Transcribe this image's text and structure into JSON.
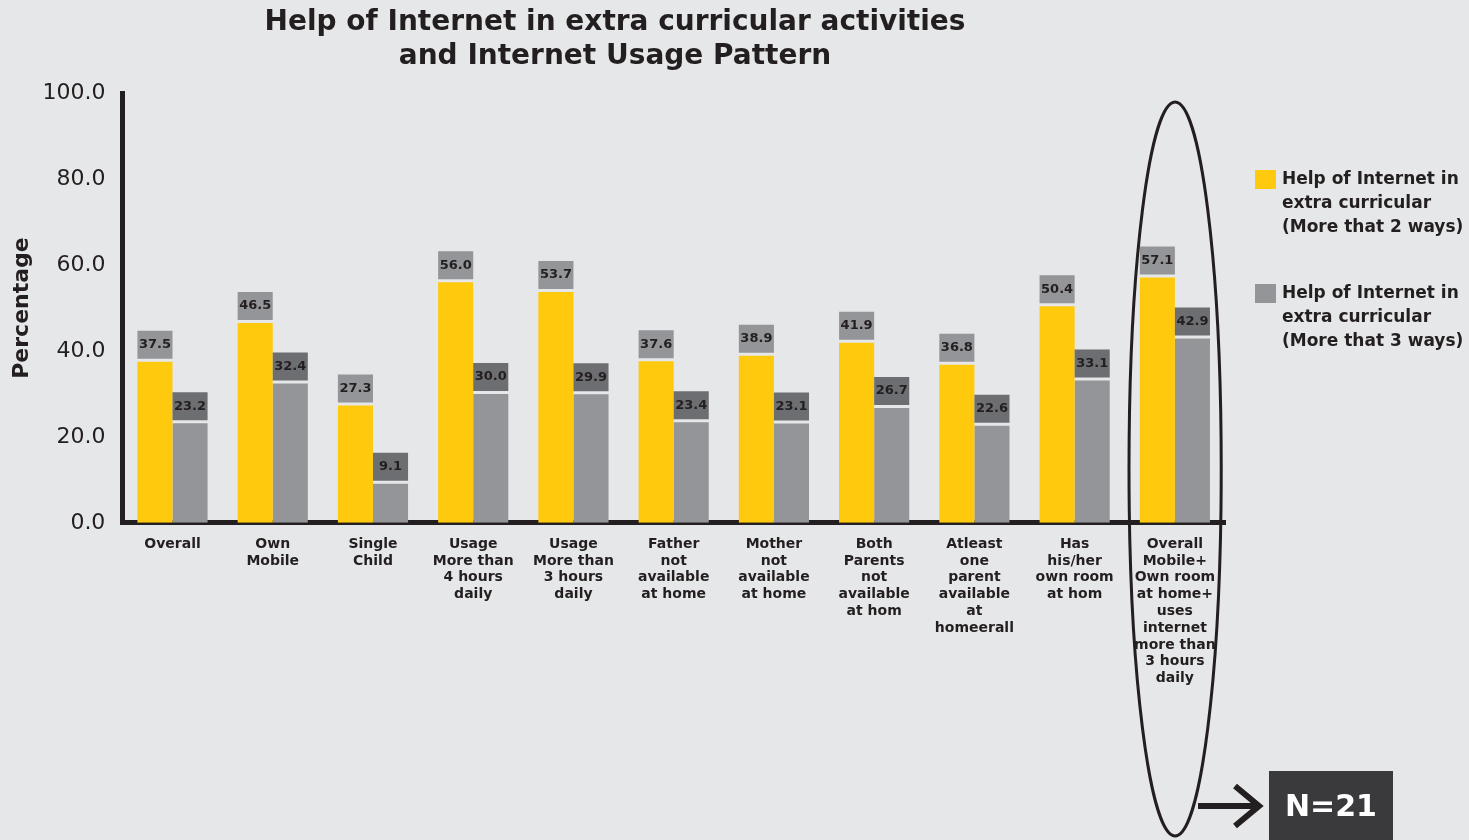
{
  "chart_data": {
    "type": "bar",
    "title": "Help of Internet in extra curricular activities\nand Internet Usage Pattern",
    "ylabel": "Percentage",
    "categories": [
      "Overall",
      "Own Mobile",
      "Single Child",
      "Usage More than 4 hours daily",
      "Usage More than 3 hours daily",
      "Father not available at home",
      "Mother not available at home",
      "Both Parents not available at hom",
      "Atleast one parent available at homeerall",
      "Has his/her own room at hom",
      "Overall Mobile+ Own room at home+ uses internet more than 3 hours daily"
    ],
    "series": [
      {
        "name": "Help of Internet in extra curricular (More that 2 ways)",
        "color": "#ffc90e",
        "values": [
          37.5,
          46.5,
          27.3,
          56.0,
          53.7,
          37.6,
          38.9,
          41.9,
          36.8,
          50.4,
          57.1
        ],
        "value_labels": [
          "37.5",
          "46.5",
          "27.3",
          "56.0",
          "53.7",
          "37.6",
          "38.9",
          "41.9",
          "36.8",
          "50.4",
          "57.1"
        ]
      },
      {
        "name": "Help of Internet in extra curricular (More that 3 ways)",
        "color": "#939598",
        "values": [
          23.2,
          32.4,
          9.1,
          30.0,
          29.9,
          23.4,
          23.1,
          26.7,
          22.6,
          33.1,
          42.9
        ],
        "value_labels": [
          "23.2",
          "32.4",
          "9.1",
          "30.0",
          "29.9",
          "23.4",
          "23.1",
          "26.7",
          "22.6",
          "33.1",
          "42.9"
        ]
      }
    ],
    "ylim": [
      0,
      100
    ],
    "yticks": [
      {
        "value": 0,
        "label": "0.0"
      },
      {
        "value": 20,
        "label": "20.0"
      },
      {
        "value": 40,
        "label": "40.0"
      },
      {
        "value": 60,
        "label": "60.0"
      },
      {
        "value": 80,
        "label": "80.0"
      },
      {
        "value": 100,
        "label": "100.0"
      }
    ],
    "legend": "right",
    "grid": false,
    "annotations": [
      "N=21"
    ]
  }
}
